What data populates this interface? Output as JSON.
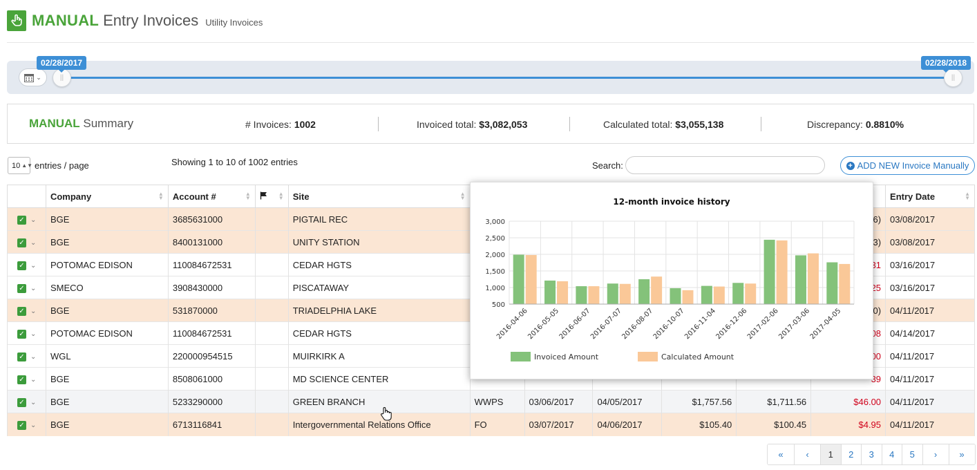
{
  "header": {
    "title_strong": "MANUAL",
    "title_light": "Entry Invoices",
    "subtitle": "Utility Invoices"
  },
  "slider": {
    "start_label": "02/28/2017",
    "end_label": "02/28/2018",
    "accent": "#3d8fd6"
  },
  "summary": {
    "title_strong": "MANUAL",
    "title_light": "Summary",
    "invoices_label": "# Invoices:",
    "invoices_value": "1002",
    "invoiced_label": "Invoiced total:",
    "invoiced_value": "$3,082,053",
    "calculated_label": "Calculated total:",
    "calculated_value": "$3,055,138",
    "discrepancy_label": "Discrepancy:",
    "discrepancy_value": "0.8810%"
  },
  "controls": {
    "per_page_value": "10",
    "per_page_label": "entries / page",
    "showing": "Showing 1 to 10 of 1002 entries",
    "search_label": "Search:",
    "search_value": "",
    "search_placeholder": "",
    "add_button": "ADD NEW Invoice Manually"
  },
  "table": {
    "headers": [
      "",
      "Company",
      "Account #",
      "",
      "Site",
      "",
      "",
      "",
      "",
      "",
      "",
      "Entry Date"
    ],
    "rows": [
      {
        "style": "sel",
        "company": "BGE",
        "account": "3685631000",
        "site": "PIGTAIL REC",
        "type": "",
        "from": "",
        "to": "",
        "invoiced": "",
        "calculated": "",
        "diff": "6)",
        "diff_red": false,
        "entry": "03/08/2017"
      },
      {
        "style": "sel",
        "company": "BGE",
        "account": "8400131000",
        "site": "UNITY STATION",
        "type": "",
        "from": "",
        "to": "",
        "invoiced": "",
        "calculated": "",
        "diff": "3)",
        "diff_red": false,
        "entry": "03/08/2017"
      },
      {
        "style": "plain",
        "company": "POTOMAC EDISON",
        "account": "110084672531",
        "site": "CEDAR HGTS",
        "type": "",
        "from": "",
        "to": "",
        "invoiced": "",
        "calculated": "",
        "diff": "31",
        "diff_red": true,
        "entry": "03/16/2017"
      },
      {
        "style": "plain",
        "company": "SMECO",
        "account": "3908430000",
        "site": "PISCATAWAY",
        "type": "",
        "from": "",
        "to": "",
        "invoiced": "",
        "calculated": "",
        "diff": "25",
        "diff_red": true,
        "entry": "03/16/2017"
      },
      {
        "style": "sel",
        "company": "BGE",
        "account": "531870000",
        "site": "TRIADELPHIA LAKE",
        "type": "",
        "from": "",
        "to": "",
        "invoiced": "",
        "calculated": "",
        "diff": "0)",
        "diff_red": false,
        "entry": "04/11/2017"
      },
      {
        "style": "plain",
        "company": "POTOMAC EDISON",
        "account": "110084672531",
        "site": "CEDAR HGTS",
        "type": "",
        "from": "",
        "to": "",
        "invoiced": "",
        "calculated": "",
        "diff": "08",
        "diff_red": true,
        "entry": "04/14/2017"
      },
      {
        "style": "plain",
        "company": "WGL",
        "account": "220000954515",
        "site": "MUIRKIRK A",
        "type": "",
        "from": "",
        "to": "",
        "invoiced": "",
        "calculated": "",
        "diff": "00",
        "diff_red": true,
        "entry": "04/11/2017"
      },
      {
        "style": "plain",
        "company": "BGE",
        "account": "8508061000",
        "site": "MD SCIENCE CENTER",
        "type": "",
        "from": "",
        "to": "",
        "invoiced": "",
        "calculated": "",
        "diff": "39",
        "diff_red": true,
        "entry": "04/11/2017"
      },
      {
        "style": "alt",
        "company": "BGE",
        "account": "5233290000",
        "site": "GREEN BRANCH",
        "type": "WWPS",
        "from": "03/06/2017",
        "to": "04/05/2017",
        "invoiced": "$1,757.56",
        "calculated": "$1,711.56",
        "diff": "$46.00",
        "diff_red": true,
        "entry": "04/11/2017"
      },
      {
        "style": "sel",
        "company": "BGE",
        "account": "6713116841",
        "site": "Intergovernmental Relations Office",
        "type": "FO",
        "from": "03/07/2017",
        "to": "04/06/2017",
        "invoiced": "$105.40",
        "calculated": "$100.45",
        "diff": "$4.95",
        "diff_red": true,
        "entry": "04/11/2017"
      }
    ]
  },
  "chart_data": {
    "type": "bar",
    "title": "12-month invoice history",
    "categories": [
      "2016-04-06",
      "2016-05-05",
      "2016-06-07",
      "2016-07-07",
      "2016-08-07",
      "2016-10-07",
      "2016-11-04",
      "2016-12-06",
      "2017-02-06",
      "2017-03-06",
      "2017-04-05"
    ],
    "series": [
      {
        "name": "Invoiced Amount",
        "color": "#84c27a",
        "values": [
          1990,
          1210,
          1040,
          1120,
          1250,
          980,
          1050,
          1140,
          2440,
          1970,
          1760
        ]
      },
      {
        "name": "Calculated Amount",
        "color": "#fac898",
        "values": [
          1980,
          1190,
          1040,
          1110,
          1330,
          920,
          1030,
          1120,
          2420,
          2030,
          1710
        ]
      }
    ],
    "ylim": [
      500,
      3000
    ],
    "yticks": [
      500,
      1000,
      1500,
      2000,
      2500,
      3000
    ],
    "ytick_labels": [
      "500",
      "1,000",
      "1,500",
      "2,000",
      "2,500",
      "3,000"
    ],
    "grid": true,
    "legend": "bottom-left"
  },
  "pagination": {
    "pages": [
      "«",
      "‹",
      "1",
      "2",
      "3",
      "4",
      "5",
      "›",
      "»"
    ],
    "active": "1"
  }
}
